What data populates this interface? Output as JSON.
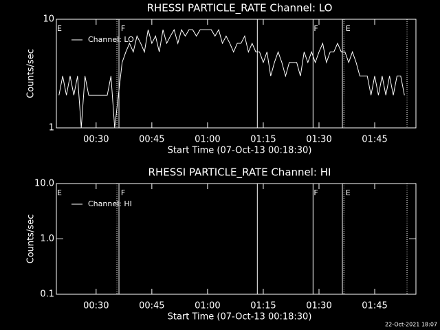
{
  "chart_data": [
    {
      "type": "line",
      "title": "RHESSI PARTICLE_RATE Channel: LO",
      "x_label": "Start Time (07-Oct-13 00:18:30)",
      "y_label": "Counts/sec",
      "log_y": true,
      "xlim": [
        19.3,
        116.1
      ],
      "ylim": [
        1,
        10
      ],
      "xticks": [
        {
          "value": 30,
          "label": "00:30"
        },
        {
          "value": 45,
          "label": "00:45"
        },
        {
          "value": 60,
          "label": "01:00"
        },
        {
          "value": 75,
          "label": "01:15"
        },
        {
          "value": 90,
          "label": "01:30"
        },
        {
          "value": 105,
          "label": "01:45"
        }
      ],
      "yticks": [
        1,
        10
      ],
      "x": [
        20,
        21,
        22,
        23,
        24,
        25,
        26,
        27,
        28,
        29,
        30,
        31,
        32,
        33,
        34,
        35,
        36,
        37,
        38,
        39,
        40,
        41,
        42,
        43,
        44,
        45,
        46,
        47,
        48,
        49,
        50,
        51,
        52,
        53,
        54,
        55,
        56,
        57,
        58,
        59,
        60,
        61,
        62,
        63,
        64,
        65,
        66,
        67,
        68,
        69,
        70,
        71,
        72,
        73,
        74,
        75,
        76,
        77,
        78,
        79,
        80,
        81,
        82,
        83,
        84,
        85,
        86,
        87,
        88,
        89,
        90,
        91,
        92,
        93,
        94,
        95,
        96,
        97,
        98,
        99,
        100,
        101,
        102,
        103,
        104,
        105,
        106,
        107,
        108,
        109,
        110,
        111,
        112,
        113
      ],
      "series": [
        {
          "name": "Channel: LO",
          "color": "#ffffff",
          "values": [
            2,
            3,
            2,
            3,
            2,
            3,
            1,
            3,
            2,
            2,
            2,
            2,
            2,
            2,
            3,
            1,
            2,
            4,
            5,
            6,
            5,
            7,
            6,
            5,
            8,
            6,
            7,
            5,
            8,
            6,
            7,
            8,
            6,
            8,
            7,
            8,
            8,
            7,
            8,
            8,
            8,
            8,
            7,
            8,
            6,
            7,
            6,
            5,
            6,
            6,
            7,
            5,
            6,
            5,
            5,
            4,
            5,
            3,
            4,
            5,
            4,
            3,
            4,
            4,
            4,
            3,
            5,
            4,
            5,
            4,
            5,
            6,
            4,
            5,
            5,
            6,
            5,
            5,
            4,
            5,
            4,
            3,
            3,
            3,
            2,
            3,
            2,
            3,
            2,
            3,
            2,
            3,
            3,
            2
          ]
        }
      ],
      "flag_lines": [
        {
          "value": 35.6,
          "style": "dotted"
        },
        {
          "value": 36.15,
          "style": "solid"
        },
        {
          "value": 73.4,
          "style": "solid"
        },
        {
          "value": 88.4,
          "style": "solid"
        },
        {
          "value": 96.3,
          "style": "solid"
        },
        {
          "value": 96.7,
          "style": "dotted"
        },
        {
          "value": 113.7,
          "style": "dotted"
        }
      ],
      "flag_labels": [
        {
          "label": "E",
          "x": 19.3
        },
        {
          "label": "F",
          "x": 36.5
        },
        {
          "label": "F",
          "x": 88.4
        },
        {
          "label": "E",
          "x": 97.0
        }
      ]
    },
    {
      "type": "line",
      "title": "RHESSI PARTICLE_RATE Channel: HI",
      "x_label": "Start Time (07-Oct-13 00:18:30)",
      "y_label": "Counts/sec",
      "log_y": true,
      "xlim": [
        19.3,
        116.1
      ],
      "ylim": [
        0.1,
        10
      ],
      "xticks": [
        {
          "value": 30,
          "label": "00:30"
        },
        {
          "value": 45,
          "label": "00:45"
        },
        {
          "value": 60,
          "label": "01:00"
        },
        {
          "value": 75,
          "label": "01:15"
        },
        {
          "value": 90,
          "label": "01:30"
        },
        {
          "value": 105,
          "label": "01:45"
        }
      ],
      "yticks": [
        0.1,
        {
          "value": 1,
          "label": "1.0"
        },
        {
          "value": 10,
          "label": "10.0"
        }
      ],
      "x": [],
      "series": [
        {
          "name": "Channel: HI",
          "color": "#ffffff",
          "values": []
        }
      ],
      "flag_lines": [
        {
          "value": 35.6,
          "style": "dotted"
        },
        {
          "value": 36.15,
          "style": "solid"
        },
        {
          "value": 73.4,
          "style": "solid"
        },
        {
          "value": 88.4,
          "style": "solid"
        },
        {
          "value": 96.3,
          "style": "solid"
        },
        {
          "value": 96.7,
          "style": "dotted"
        },
        {
          "value": 113.7,
          "style": "dotted"
        }
      ],
      "flag_labels": [
        {
          "label": "E",
          "x": 19.3
        },
        {
          "label": "F",
          "x": 36.5
        },
        {
          "label": "F",
          "x": 88.4
        },
        {
          "label": "E",
          "x": 97.0
        }
      ]
    }
  ],
  "footer": "22-Oct-2021 18:07"
}
